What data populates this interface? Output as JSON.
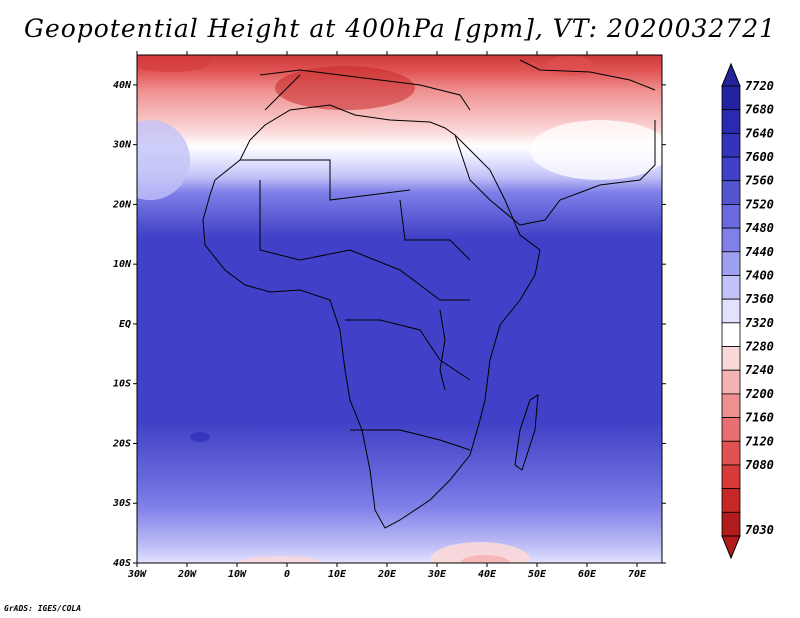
{
  "title": "Geopotential Height at 400hPa [gpm], VT: 2020032721",
  "credit": "GrADS: IGES/COLA",
  "axes": {
    "lon_ticks": [
      "30W",
      "20W",
      "10W",
      "0",
      "10E",
      "20E",
      "30E",
      "40E",
      "50E",
      "60E",
      "70E"
    ],
    "lat_ticks": [
      "40N",
      "30N",
      "20N",
      "10N",
      "EQ",
      "10S",
      "20S",
      "30S",
      "40S"
    ]
  },
  "map_extent": {
    "lon": [
      -30,
      75
    ],
    "lat": [
      -40,
      45
    ]
  },
  "colorbar": {
    "levels": [
      "7720",
      "7680",
      "7640",
      "7600",
      "7560",
      "7520",
      "7480",
      "7440",
      "7400",
      "7360",
      "7320",
      "7280",
      "7240",
      "7200",
      "7160",
      "7120",
      "7080",
      "7030"
    ],
    "colors": [
      "#2323a0",
      "#2a2ab0",
      "#3333bb",
      "#4040c8",
      "#5555d0",
      "#6a6ade",
      "#8080e8",
      "#a0a0f0",
      "#c2c2f8",
      "#e2e2ff",
      "#ffffff",
      "#fbd8d8",
      "#f5b4b4",
      "#ef9090",
      "#e87070",
      "#e05252",
      "#d63a3a",
      "#c62828",
      "#b01c1c"
    ]
  }
}
